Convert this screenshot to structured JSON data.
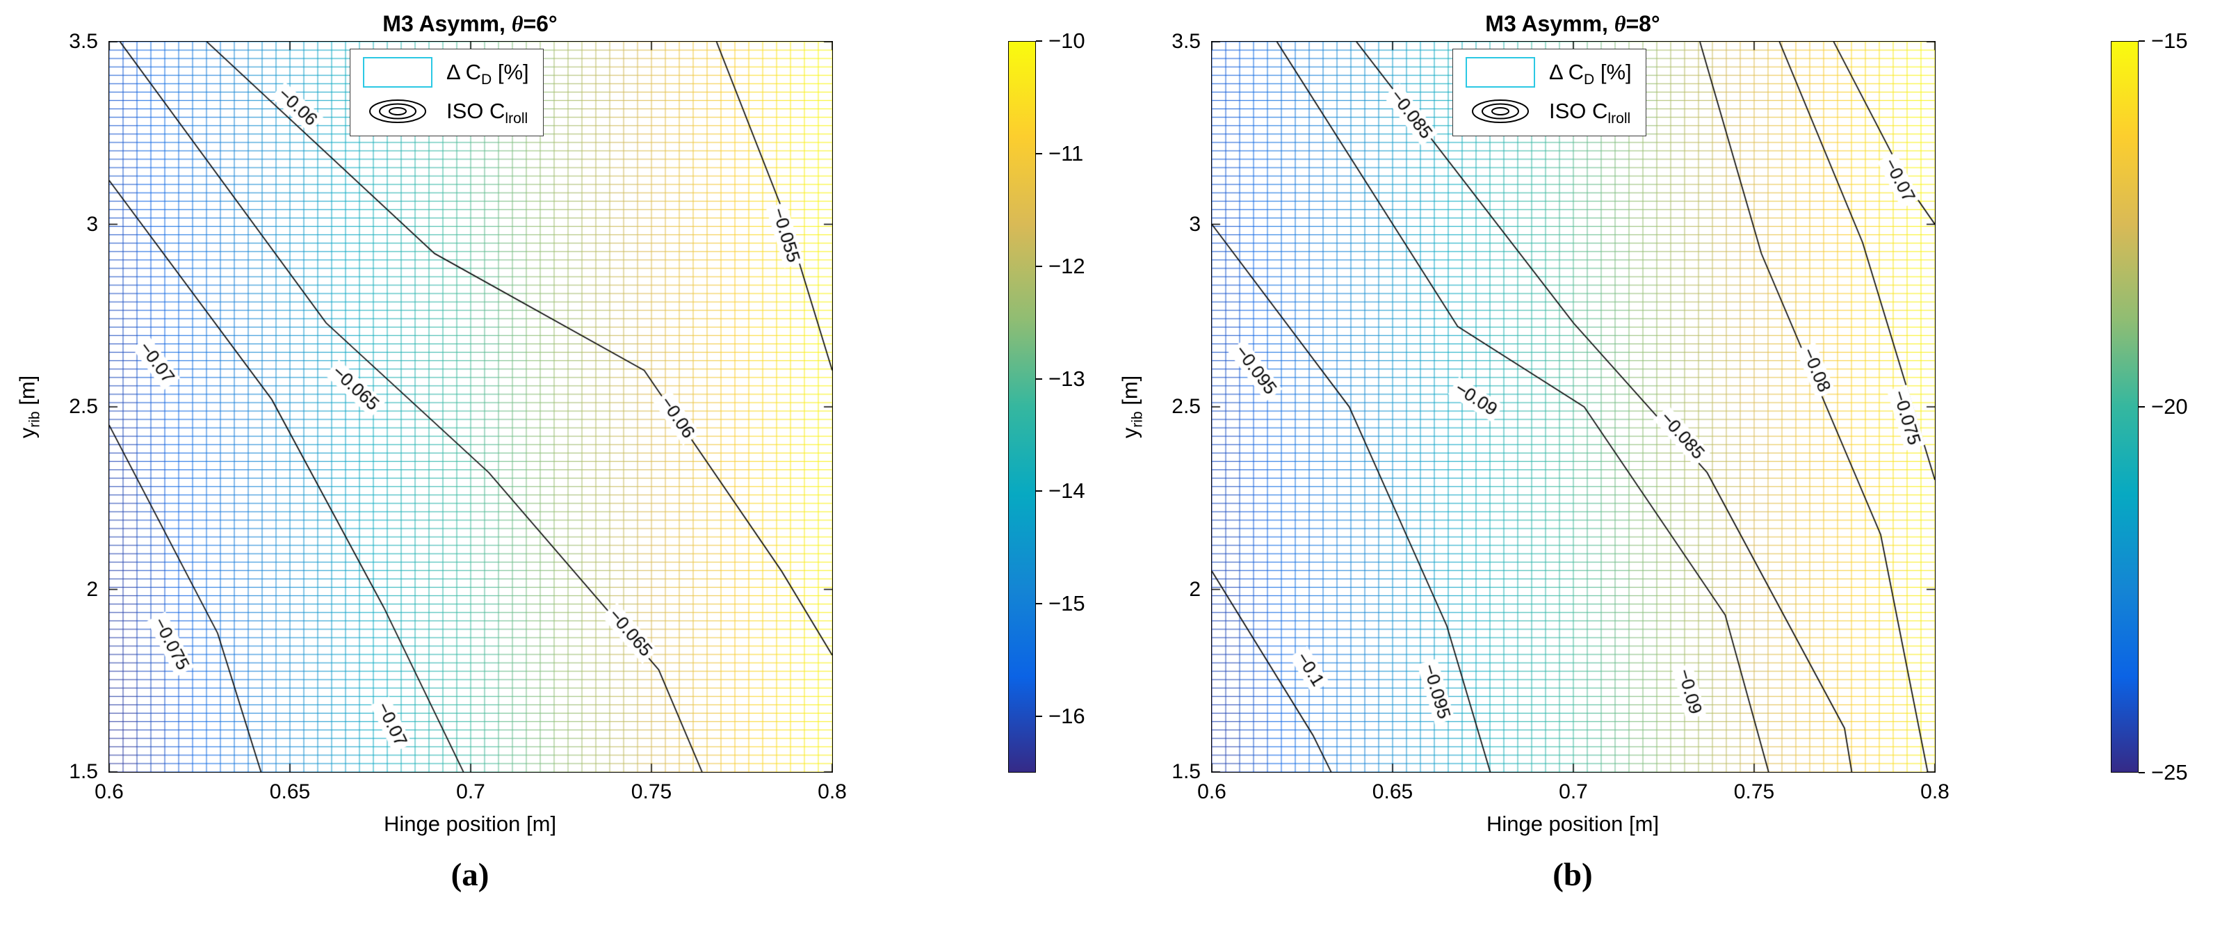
{
  "chart_data": {
    "type": "contour",
    "colormap_name": "parula",
    "colormap": [
      [
        0,
        "#352a87"
      ],
      [
        0.13,
        "#0b63e5"
      ],
      [
        0.25,
        "#1485d4"
      ],
      [
        0.38,
        "#07a9c2"
      ],
      [
        0.5,
        "#35b79f"
      ],
      [
        0.62,
        "#90bd73"
      ],
      [
        0.75,
        "#d9ba56"
      ],
      [
        0.87,
        "#fcce2e"
      ],
      [
        1,
        "#f9fb0e"
      ]
    ],
    "legend": {
      "item1": {
        "pre": "Δ C",
        "sub": "D",
        "post": " [%]"
      },
      "item2": {
        "pre": "ISO C",
        "sub": "lroll",
        "post": ""
      },
      "swatch_color": "#2bc8e4"
    },
    "panels": [
      {
        "title": {
          "prefix": "M3 Asymm, ",
          "theta": "θ",
          "suffix": "=6°"
        },
        "caption": "(a)",
        "axes": {
          "xlabel": "Hinge position [m]",
          "ylabel": {
            "base": "y",
            "sub": "rib",
            "unit": " [m]"
          },
          "xlim": [
            0.6,
            0.8
          ],
          "ylim": [
            1.5,
            3.5
          ],
          "xticks": [
            {
              "v": 0.6,
              "label": "0.6"
            },
            {
              "v": 0.65,
              "label": "0.65"
            },
            {
              "v": 0.7,
              "label": "0.7"
            },
            {
              "v": 0.75,
              "label": "0.75"
            },
            {
              "v": 0.8,
              "label": "0.8"
            }
          ],
          "yticks": [
            {
              "v": 1.5,
              "label": "1.5"
            },
            {
              "v": 2,
              "label": "2"
            },
            {
              "v": 2.5,
              "label": "2.5"
            },
            {
              "v": 3,
              "label": "3"
            },
            {
              "v": 3.5,
              "label": "3.5"
            }
          ]
        },
        "field": {
          "corners": {
            "bl": -16.4,
            "br": -10.1,
            "tl": -15.9,
            "tr": -10.0
          },
          "grid_nx": 53,
          "grid_ny": 88
        },
        "colorbar": {
          "min": -16.5,
          "max": -10,
          "ticks": [
            {
              "v": -10,
              "label": "−10"
            },
            {
              "v": -11,
              "label": "−11"
            },
            {
              "v": -12,
              "label": "−12"
            },
            {
              "v": -13,
              "label": "−13"
            },
            {
              "v": -14,
              "label": "−14"
            },
            {
              "v": -15,
              "label": "−15"
            },
            {
              "v": -16,
              "label": "−16"
            }
          ]
        },
        "contours": [
          {
            "label": "−0.055",
            "points": [
              [
                0.768,
                3.5
              ],
              [
                0.787,
                3.02
              ],
              [
                0.8,
                2.6
              ]
            ],
            "label_points": [
              [
                0.787,
                2.97
              ]
            ]
          },
          {
            "label": "−0.06",
            "points": [
              [
                0.627,
                3.5
              ],
              [
                0.69,
                2.92
              ],
              [
                0.748,
                2.6
              ],
              [
                0.786,
                2.05
              ],
              [
                0.8,
                1.82
              ]
            ],
            "label_points": [
              [
                0.652,
                3.32
              ],
              [
                0.757,
                2.47
              ]
            ]
          },
          {
            "label": "−0.065",
            "points": [
              [
                0.603,
                3.5
              ],
              [
                0.66,
                2.73
              ],
              [
                0.705,
                2.32
              ],
              [
                0.752,
                1.78
              ],
              [
                0.764,
                1.5
              ]
            ],
            "label_points": [
              [
                0.668,
                2.55
              ],
              [
                0.744,
                1.88
              ]
            ]
          },
          {
            "label": "−0.07",
            "points": [
              [
                0.6,
                3.12
              ],
              [
                0.645,
                2.52
              ],
              [
                0.676,
                1.95
              ],
              [
                0.698,
                1.5
              ]
            ],
            "label_points": [
              [
                0.613,
                2.62
              ],
              [
                0.678,
                1.63
              ]
            ]
          },
          {
            "label": "−0.075",
            "points": [
              [
                0.6,
                2.45
              ],
              [
                0.63,
                1.88
              ],
              [
                0.642,
                1.5
              ]
            ],
            "label_points": [
              [
                0.617,
                1.85
              ]
            ]
          }
        ]
      },
      {
        "title": {
          "prefix": "M3 Asymm, ",
          "theta": "θ",
          "suffix": "=8°"
        },
        "caption": "(b)",
        "axes": {
          "xlabel": "Hinge position [m]",
          "ylabel": {
            "base": "y",
            "sub": "rib",
            "unit": " [m]"
          },
          "xlim": [
            0.6,
            0.8
          ],
          "ylim": [
            1.5,
            3.5
          ],
          "xticks": [
            {
              "v": 0.6,
              "label": "0.6"
            },
            {
              "v": 0.65,
              "label": "0.65"
            },
            {
              "v": 0.7,
              "label": "0.7"
            },
            {
              "v": 0.75,
              "label": "0.75"
            },
            {
              "v": 0.8,
              "label": "0.8"
            }
          ],
          "yticks": [
            {
              "v": 1.5,
              "label": "1.5"
            },
            {
              "v": 2,
              "label": "2"
            },
            {
              "v": 2.5,
              "label": "2.5"
            },
            {
              "v": 3,
              "label": "3"
            },
            {
              "v": 3.5,
              "label": "3.5"
            }
          ]
        },
        "field": {
          "corners": {
            "bl": -24.6,
            "br": -15.3,
            "tl": -24.0,
            "tr": -15.0
          },
          "grid_nx": 53,
          "grid_ny": 88
        },
        "colorbar": {
          "min": -25,
          "max": -15,
          "ticks": [
            {
              "v": -15,
              "label": "−15"
            },
            {
              "v": -20,
              "label": "−20"
            },
            {
              "v": -25,
              "label": "−25"
            }
          ]
        },
        "contours": [
          {
            "label": "−0.07",
            "points": [
              [
                0.772,
                3.5
              ],
              [
                0.793,
                3.1
              ],
              [
                0.8,
                3.0
              ]
            ],
            "label_points": [
              [
                0.79,
                3.12
              ]
            ]
          },
          {
            "label": "−0.075",
            "points": [
              [
                0.757,
                3.5
              ],
              [
                0.78,
                2.95
              ],
              [
                0.8,
                2.3
              ]
            ],
            "label_points": [
              [
                0.792,
                2.47
              ]
            ]
          },
          {
            "label": "−0.08",
            "points": [
              [
                0.735,
                3.5
              ],
              [
                0.752,
                2.92
              ],
              [
                0.785,
                2.15
              ],
              [
                0.798,
                1.5
              ]
            ],
            "label_points": [
              [
                0.767,
                2.6
              ]
            ]
          },
          {
            "label": "−0.085",
            "points": [
              [
                0.64,
                3.5
              ],
              [
                0.7,
                2.73
              ],
              [
                0.737,
                2.32
              ],
              [
                0.775,
                1.62
              ],
              [
                0.777,
                1.5
              ]
            ],
            "label_points": [
              [
                0.655,
                3.3
              ],
              [
                0.73,
                2.42
              ]
            ]
          },
          {
            "label": "−0.09",
            "points": [
              [
                0.618,
                3.5
              ],
              [
                0.668,
                2.72
              ],
              [
                0.703,
                2.5
              ],
              [
                0.742,
                1.93
              ],
              [
                0.754,
                1.5
              ]
            ],
            "label_points": [
              [
                0.673,
                2.52
              ],
              [
                0.732,
                1.72
              ]
            ]
          },
          {
            "label": "−0.095",
            "points": [
              [
                0.6,
                3.0
              ],
              [
                0.638,
                2.5
              ],
              [
                0.665,
                1.9
              ],
              [
                0.677,
                1.5
              ]
            ],
            "label_points": [
              [
                0.612,
                2.6
              ],
              [
                0.662,
                1.72
              ]
            ]
          },
          {
            "label": "−0.1",
            "points": [
              [
                0.6,
                2.05
              ],
              [
                0.628,
                1.6
              ],
              [
                0.633,
                1.5
              ]
            ],
            "label_points": [
              [
                0.627,
                1.78
              ]
            ]
          }
        ]
      }
    ]
  }
}
